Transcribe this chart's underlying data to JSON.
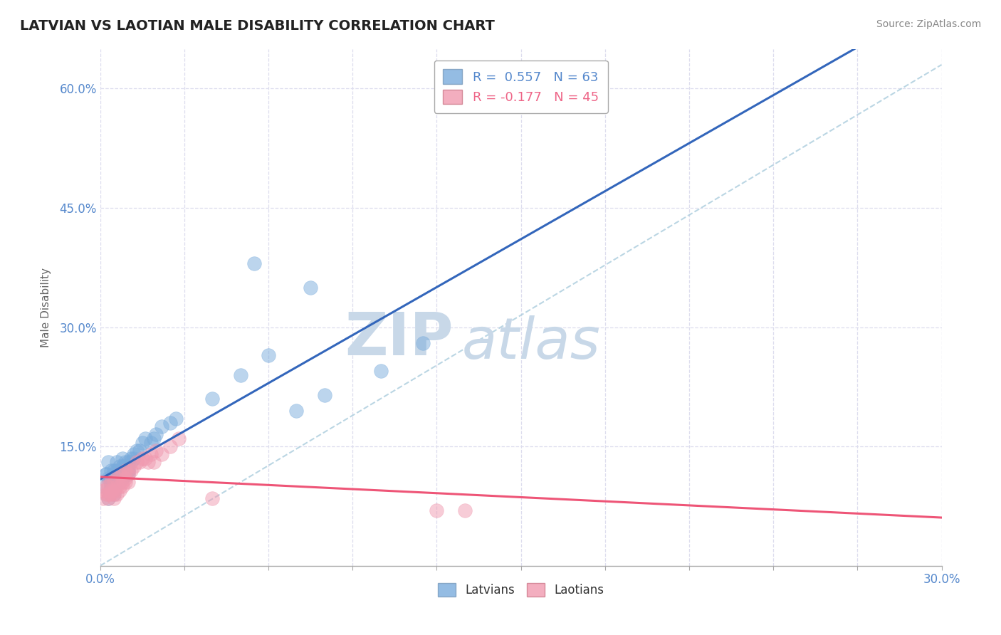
{
  "title": "LATVIAN VS LAOTIAN MALE DISABILITY CORRELATION CHART",
  "source": "Source: ZipAtlas.com",
  "xlabel": "",
  "ylabel": "Male Disability",
  "xlim": [
    0.0,
    0.3
  ],
  "ylim": [
    0.0,
    0.65
  ],
  "xticks": [
    0.0,
    0.03,
    0.06,
    0.09,
    0.12,
    0.15,
    0.18,
    0.21,
    0.24,
    0.27,
    0.3
  ],
  "xtick_labels_show": [
    "0.0%",
    "",
    "",
    "",
    "",
    "",
    "",
    "",
    "",
    "",
    "30.0%"
  ],
  "ytick_positions": [
    0.15,
    0.3,
    0.45,
    0.6
  ],
  "ytick_labels": [
    "15.0%",
    "30.0%",
    "45.0%",
    "60.0%"
  ],
  "legend_entries": [
    {
      "label": "R =  0.557   N = 63",
      "color": "#5588CC"
    },
    {
      "label": "R = -0.177   N = 45",
      "color": "#EE6688"
    }
  ],
  "latvian_color": "#7AACDC",
  "laotian_color": "#F09AB0",
  "latvian_trend_color": "#3366BB",
  "laotian_trend_color": "#EE5577",
  "ref_line_color": "#AACCDD",
  "grid_color": "#DDDDEE",
  "watermark_zip": "ZIP",
  "watermark_atlas": "atlas",
  "watermark_color": "#C8D8E8",
  "title_color": "#222222",
  "axis_label_color": "#5588CC",
  "background_color": "#FFFFFF",
  "latvian_x": [
    0.001,
    0.002,
    0.002,
    0.003,
    0.003,
    0.003,
    0.004,
    0.004,
    0.004,
    0.004,
    0.005,
    0.005,
    0.005,
    0.005,
    0.005,
    0.006,
    0.006,
    0.006,
    0.006,
    0.006,
    0.007,
    0.007,
    0.007,
    0.007,
    0.007,
    0.007,
    0.008,
    0.008,
    0.008,
    0.008,
    0.008,
    0.009,
    0.009,
    0.009,
    0.009,
    0.01,
    0.01,
    0.01,
    0.01,
    0.01,
    0.011,
    0.011,
    0.012,
    0.012,
    0.013,
    0.014,
    0.015,
    0.016,
    0.018,
    0.019,
    0.02,
    0.022,
    0.025,
    0.027,
    0.04,
    0.05,
    0.06,
    0.07,
    0.08,
    0.1,
    0.115,
    0.055,
    0.075
  ],
  "latvian_y": [
    0.1,
    0.115,
    0.115,
    0.13,
    0.11,
    0.085,
    0.1,
    0.105,
    0.11,
    0.12,
    0.09,
    0.095,
    0.11,
    0.115,
    0.12,
    0.105,
    0.11,
    0.115,
    0.12,
    0.13,
    0.105,
    0.11,
    0.115,
    0.115,
    0.12,
    0.125,
    0.11,
    0.115,
    0.12,
    0.125,
    0.135,
    0.115,
    0.12,
    0.125,
    0.13,
    0.115,
    0.12,
    0.12,
    0.125,
    0.13,
    0.13,
    0.135,
    0.135,
    0.14,
    0.145,
    0.145,
    0.155,
    0.16,
    0.155,
    0.16,
    0.165,
    0.175,
    0.18,
    0.185,
    0.21,
    0.24,
    0.265,
    0.195,
    0.215,
    0.245,
    0.28,
    0.38,
    0.35
  ],
  "laotian_x": [
    0.001,
    0.001,
    0.002,
    0.002,
    0.003,
    0.003,
    0.003,
    0.004,
    0.004,
    0.004,
    0.005,
    0.005,
    0.005,
    0.005,
    0.006,
    0.006,
    0.006,
    0.007,
    0.007,
    0.007,
    0.008,
    0.008,
    0.008,
    0.009,
    0.009,
    0.009,
    0.01,
    0.01,
    0.01,
    0.011,
    0.012,
    0.013,
    0.014,
    0.015,
    0.016,
    0.017,
    0.018,
    0.019,
    0.02,
    0.022,
    0.025,
    0.028,
    0.04,
    0.12,
    0.13
  ],
  "laotian_y": [
    0.085,
    0.095,
    0.09,
    0.1,
    0.085,
    0.09,
    0.1,
    0.09,
    0.095,
    0.105,
    0.085,
    0.09,
    0.095,
    0.105,
    0.09,
    0.1,
    0.11,
    0.095,
    0.1,
    0.115,
    0.1,
    0.105,
    0.115,
    0.105,
    0.11,
    0.12,
    0.105,
    0.115,
    0.12,
    0.12,
    0.125,
    0.13,
    0.13,
    0.135,
    0.135,
    0.13,
    0.14,
    0.13,
    0.145,
    0.14,
    0.15,
    0.16,
    0.085,
    0.07,
    0.07
  ]
}
